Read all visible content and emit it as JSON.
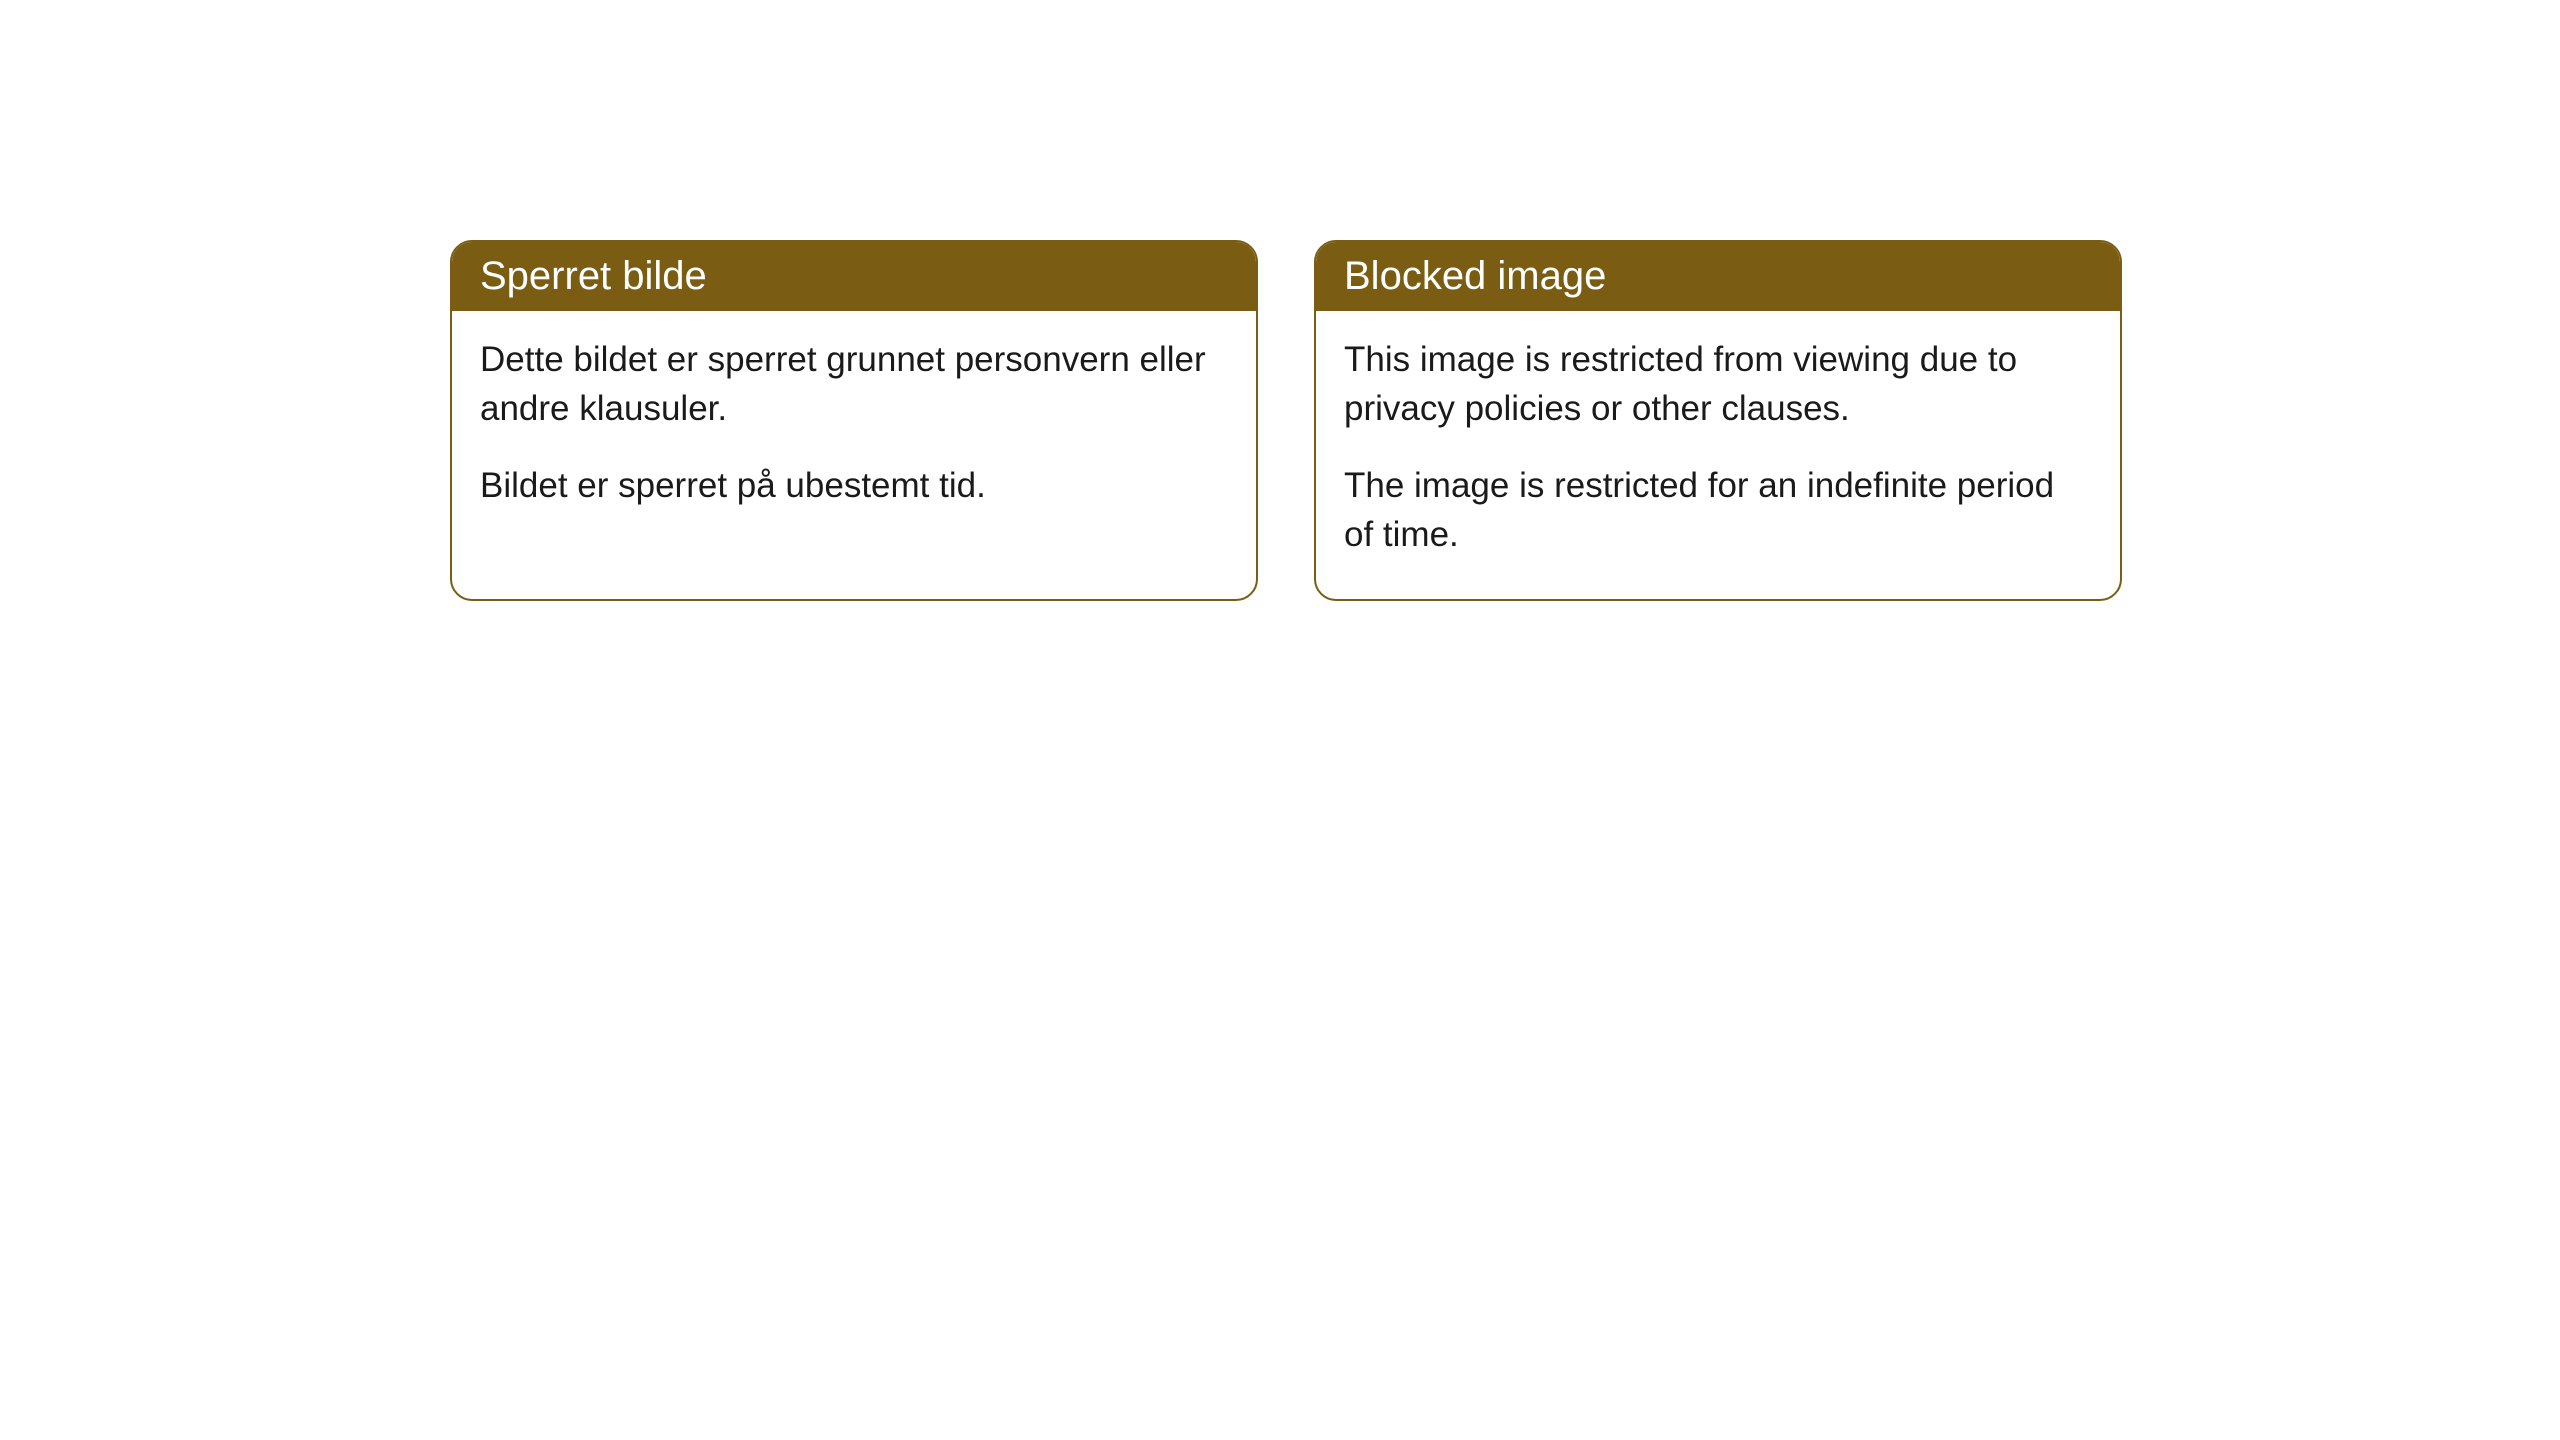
{
  "cards": [
    {
      "title": "Sperret bilde",
      "paragraph1": "Dette bildet er sperret grunnet personvern eller andre klausuler.",
      "paragraph2": "Bildet er sperret på ubestemt tid."
    },
    {
      "title": "Blocked image",
      "paragraph1": "This image is restricted from viewing due to privacy policies or other clauses.",
      "paragraph2": "The image is restricted for an indefinite period of time."
    }
  ],
  "styling": {
    "header_background": "#7a5d13",
    "header_text_color": "#ffffff",
    "border_color": "#7a5d13",
    "card_background": "#ffffff",
    "body_text_color": "#1a1a1a",
    "border_radius": 22,
    "title_fontsize": 40,
    "body_fontsize": 35
  }
}
